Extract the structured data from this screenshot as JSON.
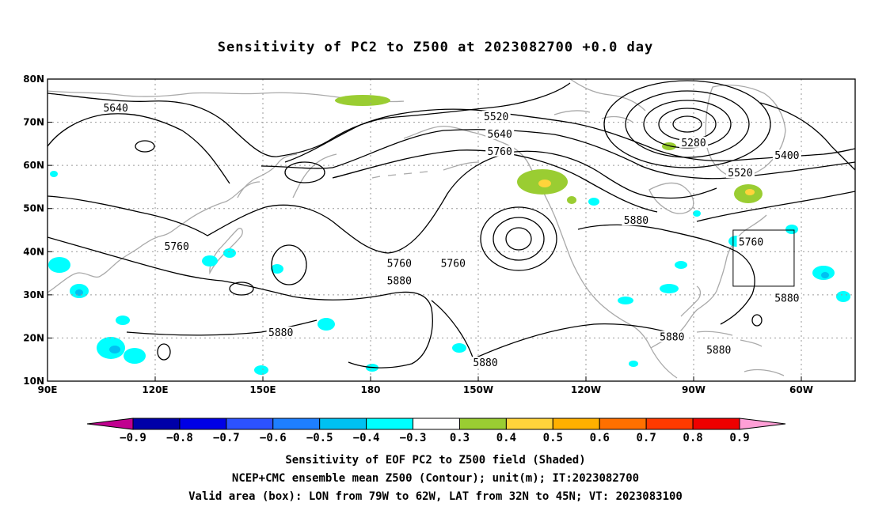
{
  "title": "Sensitivity of PC2 to Z500 at 2023082700 +0.0 day",
  "map": {
    "lat_labels": [
      {
        "lat": 80,
        "text": "80N"
      },
      {
        "lat": 70,
        "text": "70N"
      },
      {
        "lat": 60,
        "text": "60N"
      },
      {
        "lat": 50,
        "text": "50N"
      },
      {
        "lat": 40,
        "text": "40N"
      },
      {
        "lat": 30,
        "text": "30N"
      },
      {
        "lat": 20,
        "text": "20N"
      },
      {
        "lat": 10,
        "text": "10N"
      }
    ],
    "lon_labels": [
      {
        "lon": 90,
        "text": "90E"
      },
      {
        "lon": 120,
        "text": "120E"
      },
      {
        "lon": 150,
        "text": "150E"
      },
      {
        "lon": 180,
        "text": "180"
      },
      {
        "lon": 210,
        "text": "150W"
      },
      {
        "lon": 240,
        "text": "120W"
      },
      {
        "lon": 270,
        "text": "90W"
      },
      {
        "lon": 300,
        "text": "60W"
      }
    ],
    "lon_range": [
      90,
      315
    ],
    "lat_range": [
      10,
      80
    ],
    "grid": true,
    "contour_labels": [
      {
        "text": "5640",
        "lon": 109,
        "lat": 73
      },
      {
        "text": "5760",
        "lon": 126,
        "lat": 41
      },
      {
        "text": "5880",
        "lon": 155,
        "lat": 21
      },
      {
        "text": "5760",
        "lon": 188,
        "lat": 37
      },
      {
        "text": "5880",
        "lon": 188,
        "lat": 33
      },
      {
        "text": "5520",
        "lon": 215,
        "lat": 71
      },
      {
        "text": "5640",
        "lon": 216,
        "lat": 67
      },
      {
        "text": "5760",
        "lon": 216,
        "lat": 63
      },
      {
        "text": "5760",
        "lon": 203,
        "lat": 37
      },
      {
        "text": "5880",
        "lon": 212,
        "lat": 14
      },
      {
        "text": "5880",
        "lon": 254,
        "lat": 47
      },
      {
        "text": "5880",
        "lon": 264,
        "lat": 20
      },
      {
        "text": "5880",
        "lon": 277,
        "lat": 17
      },
      {
        "text": "5280",
        "lon": 270,
        "lat": 65
      },
      {
        "text": "5520",
        "lon": 283,
        "lat": 58
      },
      {
        "text": "5400",
        "lon": 296,
        "lat": 62
      },
      {
        "text": "5760",
        "lon": 286,
        "lat": 42
      },
      {
        "text": "5880",
        "lon": 296,
        "lat": 29
      }
    ],
    "valid_box": {
      "lon_min": 281,
      "lon_max": 298,
      "lat_min": 32,
      "lat_max": 45
    }
  },
  "colorbar": {
    "colors": [
      "#c0008f",
      "#0000a8",
      "#0000e6",
      "#2c52ff",
      "#1e7fff",
      "#00c1f2",
      "#00ffff",
      "#ffffff",
      "#9acd32",
      "#ffd43b",
      "#ffb000",
      "#ff7000",
      "#ff3a00",
      "#ee0000",
      "#ff9fd6"
    ],
    "labels": [
      "−0.9",
      "−0.8",
      "−0.7",
      "−0.6",
      "−0.5",
      "−0.4",
      "−0.3",
      "0.3",
      "0.4",
      "0.5",
      "0.6",
      "0.7",
      "0.8",
      "0.9"
    ]
  },
  "captions": {
    "line1": "Sensitivity of EOF PC2 to Z500 field (Shaded)",
    "line2": "NCEP+CMC ensemble mean Z500 (Contour); unit(m); IT:2023082700",
    "line3": "Valid area (box): LON from 79W to 62W, LAT from 32N to 45N; VT: 2023083100"
  }
}
